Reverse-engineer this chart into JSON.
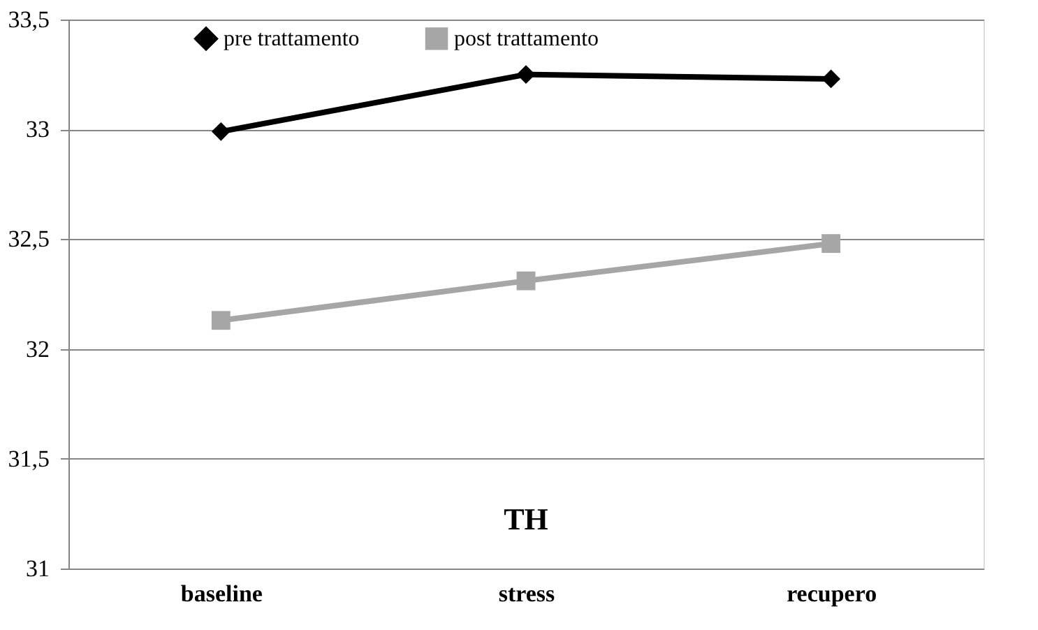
{
  "chart_data": {
    "type": "line",
    "categories": [
      "baseline",
      "stress",
      "recupero"
    ],
    "series": [
      {
        "name": "pre trattamento",
        "color": "#000000",
        "marker": "diamond",
        "values": [
          32.99,
          33.25,
          33.23
        ]
      },
      {
        "name": "post trattamento",
        "color": "#a6a6a6",
        "marker": "square",
        "values": [
          32.13,
          32.31,
          32.48
        ]
      }
    ],
    "ylim": [
      31,
      33.5
    ],
    "yticks": [
      31,
      {
        "value": 31.5,
        "label": "31,5"
      },
      32,
      {
        "value": 32.5,
        "label": "32,5"
      },
      33,
      {
        "value": 33.5,
        "label": "33,5"
      }
    ],
    "grid": "y",
    "legend": "top",
    "annotations": [
      "TH"
    ],
    "line_style": "solid"
  }
}
